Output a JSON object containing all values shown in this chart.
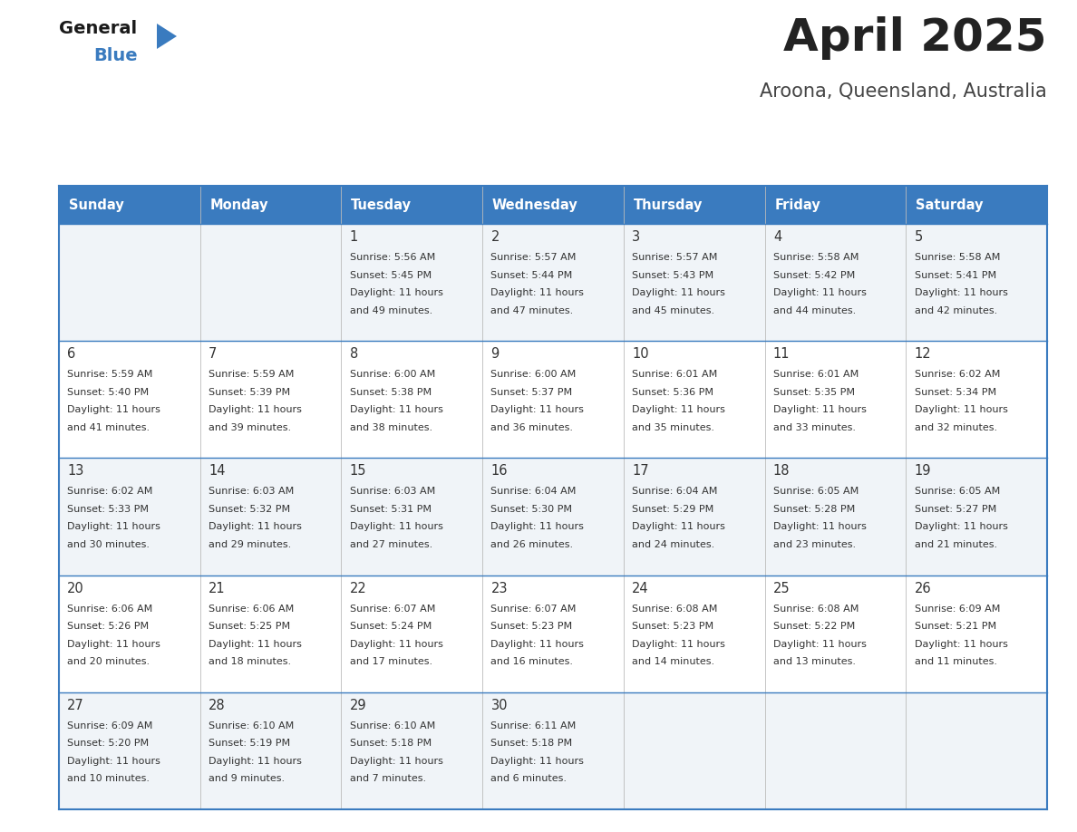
{
  "title": "April 2025",
  "subtitle": "Aroona, Queensland, Australia",
  "header_bg_color": "#3a7bbf",
  "header_text_color": "#ffffff",
  "odd_row_bg": "#f0f4f8",
  "even_row_bg": "#ffffff",
  "border_color": "#3a7bbf",
  "title_color": "#222222",
  "subtitle_color": "#444444",
  "text_color": "#333333",
  "days_of_week": [
    "Sunday",
    "Monday",
    "Tuesday",
    "Wednesday",
    "Thursday",
    "Friday",
    "Saturday"
  ],
  "weeks": [
    [
      {
        "day": null,
        "sunrise": null,
        "sunset": null,
        "daylight": null
      },
      {
        "day": null,
        "sunrise": null,
        "sunset": null,
        "daylight": null
      },
      {
        "day": 1,
        "sunrise": "5:56 AM",
        "sunset": "5:45 PM",
        "daylight": "11 hours\nand 49 minutes."
      },
      {
        "day": 2,
        "sunrise": "5:57 AM",
        "sunset": "5:44 PM",
        "daylight": "11 hours\nand 47 minutes."
      },
      {
        "day": 3,
        "sunrise": "5:57 AM",
        "sunset": "5:43 PM",
        "daylight": "11 hours\nand 45 minutes."
      },
      {
        "day": 4,
        "sunrise": "5:58 AM",
        "sunset": "5:42 PM",
        "daylight": "11 hours\nand 44 minutes."
      },
      {
        "day": 5,
        "sunrise": "5:58 AM",
        "sunset": "5:41 PM",
        "daylight": "11 hours\nand 42 minutes."
      }
    ],
    [
      {
        "day": 6,
        "sunrise": "5:59 AM",
        "sunset": "5:40 PM",
        "daylight": "11 hours\nand 41 minutes."
      },
      {
        "day": 7,
        "sunrise": "5:59 AM",
        "sunset": "5:39 PM",
        "daylight": "11 hours\nand 39 minutes."
      },
      {
        "day": 8,
        "sunrise": "6:00 AM",
        "sunset": "5:38 PM",
        "daylight": "11 hours\nand 38 minutes."
      },
      {
        "day": 9,
        "sunrise": "6:00 AM",
        "sunset": "5:37 PM",
        "daylight": "11 hours\nand 36 minutes."
      },
      {
        "day": 10,
        "sunrise": "6:01 AM",
        "sunset": "5:36 PM",
        "daylight": "11 hours\nand 35 minutes."
      },
      {
        "day": 11,
        "sunrise": "6:01 AM",
        "sunset": "5:35 PM",
        "daylight": "11 hours\nand 33 minutes."
      },
      {
        "day": 12,
        "sunrise": "6:02 AM",
        "sunset": "5:34 PM",
        "daylight": "11 hours\nand 32 minutes."
      }
    ],
    [
      {
        "day": 13,
        "sunrise": "6:02 AM",
        "sunset": "5:33 PM",
        "daylight": "11 hours\nand 30 minutes."
      },
      {
        "day": 14,
        "sunrise": "6:03 AM",
        "sunset": "5:32 PM",
        "daylight": "11 hours\nand 29 minutes."
      },
      {
        "day": 15,
        "sunrise": "6:03 AM",
        "sunset": "5:31 PM",
        "daylight": "11 hours\nand 27 minutes."
      },
      {
        "day": 16,
        "sunrise": "6:04 AM",
        "sunset": "5:30 PM",
        "daylight": "11 hours\nand 26 minutes."
      },
      {
        "day": 17,
        "sunrise": "6:04 AM",
        "sunset": "5:29 PM",
        "daylight": "11 hours\nand 24 minutes."
      },
      {
        "day": 18,
        "sunrise": "6:05 AM",
        "sunset": "5:28 PM",
        "daylight": "11 hours\nand 23 minutes."
      },
      {
        "day": 19,
        "sunrise": "6:05 AM",
        "sunset": "5:27 PM",
        "daylight": "11 hours\nand 21 minutes."
      }
    ],
    [
      {
        "day": 20,
        "sunrise": "6:06 AM",
        "sunset": "5:26 PM",
        "daylight": "11 hours\nand 20 minutes."
      },
      {
        "day": 21,
        "sunrise": "6:06 AM",
        "sunset": "5:25 PM",
        "daylight": "11 hours\nand 18 minutes."
      },
      {
        "day": 22,
        "sunrise": "6:07 AM",
        "sunset": "5:24 PM",
        "daylight": "11 hours\nand 17 minutes."
      },
      {
        "day": 23,
        "sunrise": "6:07 AM",
        "sunset": "5:23 PM",
        "daylight": "11 hours\nand 16 minutes."
      },
      {
        "day": 24,
        "sunrise": "6:08 AM",
        "sunset": "5:23 PM",
        "daylight": "11 hours\nand 14 minutes."
      },
      {
        "day": 25,
        "sunrise": "6:08 AM",
        "sunset": "5:22 PM",
        "daylight": "11 hours\nand 13 minutes."
      },
      {
        "day": 26,
        "sunrise": "6:09 AM",
        "sunset": "5:21 PM",
        "daylight": "11 hours\nand 11 minutes."
      }
    ],
    [
      {
        "day": 27,
        "sunrise": "6:09 AM",
        "sunset": "5:20 PM",
        "daylight": "11 hours\nand 10 minutes."
      },
      {
        "day": 28,
        "sunrise": "6:10 AM",
        "sunset": "5:19 PM",
        "daylight": "11 hours\nand 9 minutes."
      },
      {
        "day": 29,
        "sunrise": "6:10 AM",
        "sunset": "5:18 PM",
        "daylight": "11 hours\nand 7 minutes."
      },
      {
        "day": 30,
        "sunrise": "6:11 AM",
        "sunset": "5:18 PM",
        "daylight": "11 hours\nand 6 minutes."
      },
      {
        "day": null,
        "sunrise": null,
        "sunset": null,
        "daylight": null
      },
      {
        "day": null,
        "sunrise": null,
        "sunset": null,
        "daylight": null
      },
      {
        "day": null,
        "sunrise": null,
        "sunset": null,
        "daylight": null
      }
    ]
  ]
}
